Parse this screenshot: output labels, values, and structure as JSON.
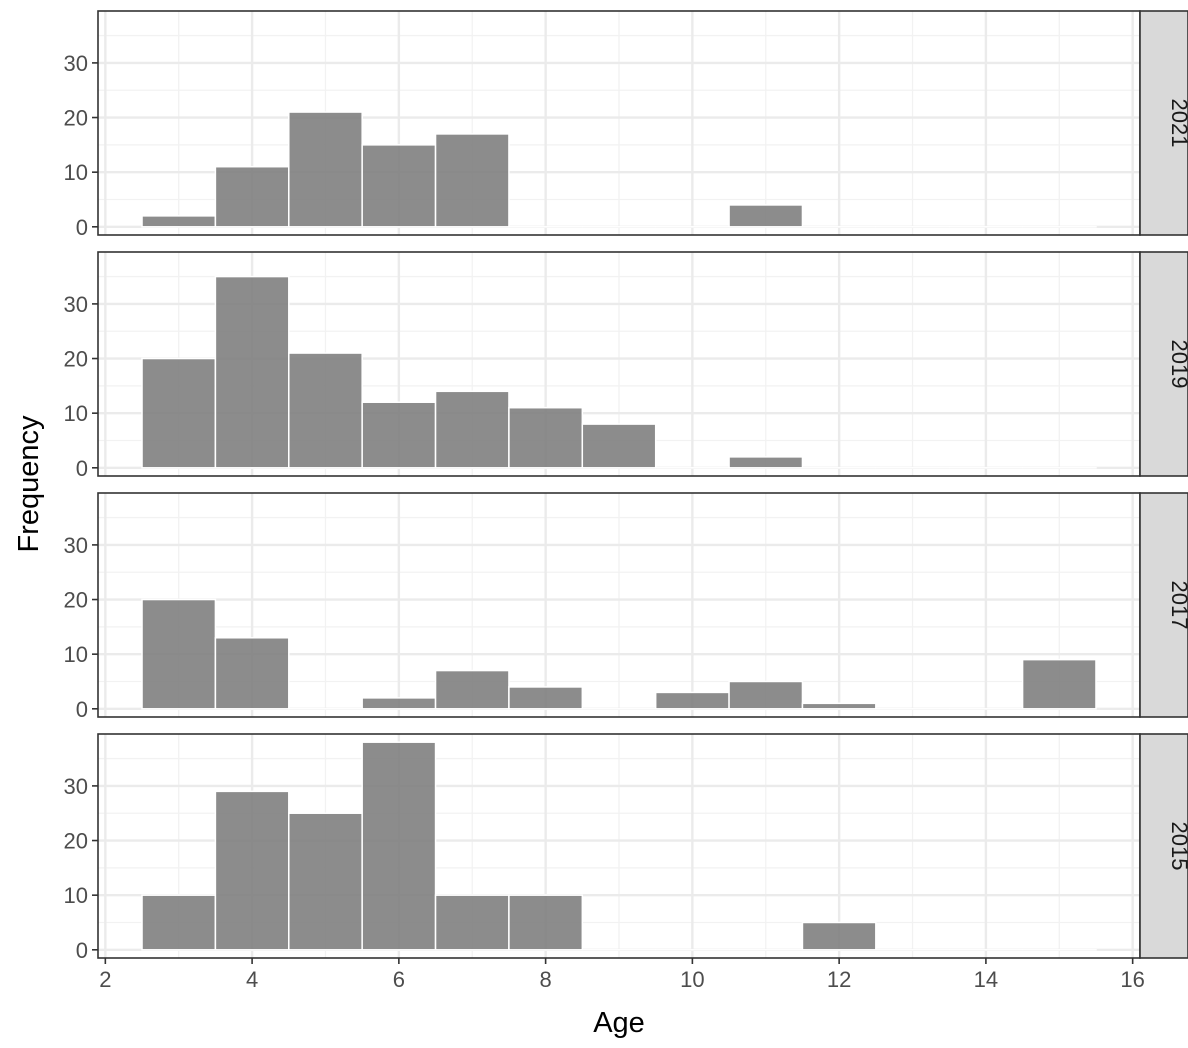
{
  "chart_data": {
    "type": "bar",
    "subtype": "faceted-histogram",
    "xlabel": "Age",
    "ylabel": "Frequency",
    "x_range": [
      1.9,
      16.1
    ],
    "x_ticks": [
      2,
      4,
      6,
      8,
      10,
      12,
      14,
      16
    ],
    "y_range": [
      -1.5,
      39.5
    ],
    "y_ticks": [
      0,
      10,
      20,
      30
    ],
    "bin_width": 1,
    "grid": true,
    "bar_color": "#7f7f7f",
    "strip_color": "#d9d9d9",
    "panels": [
      {
        "label": "2021",
        "bins": [
          {
            "center": 3,
            "count": 2
          },
          {
            "center": 4,
            "count": 11
          },
          {
            "center": 5,
            "count": 21
          },
          {
            "center": 6,
            "count": 15
          },
          {
            "center": 7,
            "count": 17
          },
          {
            "center": 8,
            "count": 0
          },
          {
            "center": 9,
            "count": 0
          },
          {
            "center": 10,
            "count": 0
          },
          {
            "center": 11,
            "count": 4
          },
          {
            "center": 12,
            "count": 0
          },
          {
            "center": 13,
            "count": 0
          },
          {
            "center": 14,
            "count": 0
          },
          {
            "center": 15,
            "count": 0
          }
        ]
      },
      {
        "label": "2019",
        "bins": [
          {
            "center": 3,
            "count": 20
          },
          {
            "center": 4,
            "count": 35
          },
          {
            "center": 5,
            "count": 21
          },
          {
            "center": 6,
            "count": 12
          },
          {
            "center": 7,
            "count": 14
          },
          {
            "center": 8,
            "count": 11
          },
          {
            "center": 9,
            "count": 8
          },
          {
            "center": 10,
            "count": 0
          },
          {
            "center": 11,
            "count": 2
          },
          {
            "center": 12,
            "count": 0
          },
          {
            "center": 13,
            "count": 0
          },
          {
            "center": 14,
            "count": 0
          },
          {
            "center": 15,
            "count": 0
          }
        ]
      },
      {
        "label": "2017",
        "bins": [
          {
            "center": 3,
            "count": 20
          },
          {
            "center": 4,
            "count": 13
          },
          {
            "center": 5,
            "count": 0
          },
          {
            "center": 6,
            "count": 2
          },
          {
            "center": 7,
            "count": 7
          },
          {
            "center": 8,
            "count": 4
          },
          {
            "center": 9,
            "count": 0
          },
          {
            "center": 10,
            "count": 3
          },
          {
            "center": 11,
            "count": 5
          },
          {
            "center": 12,
            "count": 1
          },
          {
            "center": 13,
            "count": 0
          },
          {
            "center": 14,
            "count": 0
          },
          {
            "center": 15,
            "count": 9
          }
        ]
      },
      {
        "label": "2015",
        "bins": [
          {
            "center": 3,
            "count": 10
          },
          {
            "center": 4,
            "count": 29
          },
          {
            "center": 5,
            "count": 25
          },
          {
            "center": 6,
            "count": 38
          },
          {
            "center": 7,
            "count": 10
          },
          {
            "center": 8,
            "count": 10
          },
          {
            "center": 9,
            "count": 0
          },
          {
            "center": 10,
            "count": 0
          },
          {
            "center": 11,
            "count": 0
          },
          {
            "center": 12,
            "count": 5
          },
          {
            "center": 13,
            "count": 0
          },
          {
            "center": 14,
            "count": 0
          },
          {
            "center": 15,
            "count": 0
          }
        ]
      }
    ]
  }
}
